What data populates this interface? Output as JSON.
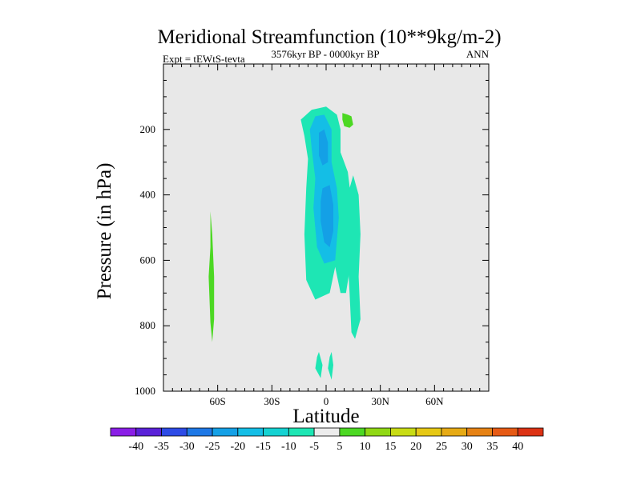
{
  "chart_data": {
    "type": "contour",
    "title": "Meridional Streamfunction (10**9kg/m-2)",
    "subtitle_left": "Expt = tEWtS-tevta",
    "subtitle_center": "3576kyr BP - 0000kyr BP",
    "subtitle_right": "ANN",
    "xlabel": "Latitude",
    "ylabel": "Pressure (in hPa)",
    "xlim": [
      -90,
      90
    ],
    "ylim": [
      1000,
      0
    ],
    "x_ticks": [
      {
        "value": -60,
        "label": "60S"
      },
      {
        "value": -30,
        "label": "30S"
      },
      {
        "value": 0,
        "label": "0"
      },
      {
        "value": 30,
        "label": "30N"
      },
      {
        "value": 60,
        "label": "60N"
      }
    ],
    "y_ticks": [
      {
        "value": 200,
        "label": "200"
      },
      {
        "value": 400,
        "label": "400"
      },
      {
        "value": 600,
        "label": "600"
      },
      {
        "value": 800,
        "label": "800"
      },
      {
        "value": 1000,
        "label": "1000"
      }
    ],
    "background_color": "#e8e8e8",
    "colorbar": {
      "labels": [
        "-40",
        "-35",
        "-30",
        "-25",
        "-20",
        "-15",
        "-10",
        "-5",
        "5",
        "10",
        "15",
        "20",
        "25",
        "30",
        "35",
        "40"
      ],
      "colors": [
        "#8a1ee6",
        "#5a22d8",
        "#2d4be6",
        "#1e78e6",
        "#14a0e6",
        "#14bee6",
        "#14d2d2",
        "#1ee6b4",
        "#ececec",
        "#4cd823",
        "#90d814",
        "#c8dc14",
        "#e6c814",
        "#e6aa14",
        "#e68214",
        "#e65a14",
        "#dc3214"
      ]
    },
    "regions": [
      {
        "level": -10,
        "color": "#1ee6b4",
        "points": [
          [
            -8,
            140
          ],
          [
            0,
            130
          ],
          [
            6,
            155
          ],
          [
            8,
            200
          ],
          [
            8,
            270
          ],
          [
            12,
            330
          ],
          [
            14,
            420
          ],
          [
            13,
            520
          ],
          [
            13,
            630
          ],
          [
            11,
            700
          ],
          [
            8,
            700
          ],
          [
            5,
            620
          ],
          [
            2,
            700
          ],
          [
            -6,
            720
          ],
          [
            -11,
            660
          ],
          [
            -12,
            520
          ],
          [
            -11,
            380
          ],
          [
            -10,
            290
          ],
          [
            -12,
            220
          ],
          [
            -14,
            170
          ]
        ]
      },
      {
        "level": -10,
        "color": "#1ee6b4",
        "points": [
          [
            15,
            340
          ],
          [
            18,
            400
          ],
          [
            19,
            520
          ],
          [
            18,
            650
          ],
          [
            19,
            780
          ],
          [
            16,
            840
          ],
          [
            14,
            820
          ],
          [
            13,
            700
          ],
          [
            12,
            600
          ],
          [
            12,
            460
          ],
          [
            13,
            380
          ]
        ]
      },
      {
        "level": -10,
        "color": "#1ee6b4",
        "points": [
          [
            -4,
            880
          ],
          [
            -2,
            920
          ],
          [
            -3,
            960
          ],
          [
            -6,
            930
          ],
          [
            -5,
            895
          ]
        ]
      },
      {
        "level": -10,
        "color": "#1ee6b4",
        "points": [
          [
            3,
            880
          ],
          [
            4,
            920
          ],
          [
            3,
            965
          ],
          [
            1,
            930
          ],
          [
            2,
            895
          ]
        ]
      },
      {
        "level": -15,
        "color": "#14bee6",
        "points": [
          [
            -6,
            160
          ],
          [
            -1,
            155
          ],
          [
            3,
            200
          ],
          [
            3,
            300
          ],
          [
            6,
            380
          ],
          [
            7,
            470
          ],
          [
            5,
            600
          ],
          [
            -1,
            610
          ],
          [
            -5,
            560
          ],
          [
            -7,
            440
          ],
          [
            -6,
            350
          ],
          [
            -8,
            260
          ],
          [
            -9,
            200
          ]
        ]
      },
      {
        "level": -20,
        "color": "#14a0e6",
        "points": [
          [
            -4,
            210
          ],
          [
            -1,
            200
          ],
          [
            1,
            240
          ],
          [
            1,
            300
          ],
          [
            -2,
            310
          ],
          [
            -4,
            280
          ]
        ]
      },
      {
        "level": -20,
        "color": "#14a0e6",
        "points": [
          [
            -2,
            380
          ],
          [
            2,
            370
          ],
          [
            4,
            430
          ],
          [
            4,
            510
          ],
          [
            2,
            560
          ],
          [
            -1,
            545
          ],
          [
            -3,
            480
          ],
          [
            -3,
            420
          ]
        ]
      },
      {
        "level": 5,
        "color": "#4cd823",
        "points": [
          [
            9,
            150
          ],
          [
            12,
            155
          ],
          [
            14,
            160
          ],
          [
            15,
            185
          ],
          [
            13,
            195
          ],
          [
            10,
            190
          ],
          [
            9,
            170
          ]
        ]
      },
      {
        "level": 5,
        "color": "#4cd823",
        "points": [
          [
            -64,
            450
          ],
          [
            -63,
            520
          ],
          [
            -62,
            650
          ],
          [
            -62,
            780
          ],
          [
            -63,
            850
          ],
          [
            -64,
            790
          ],
          [
            -65,
            650
          ],
          [
            -64,
            560
          ]
        ]
      }
    ]
  }
}
